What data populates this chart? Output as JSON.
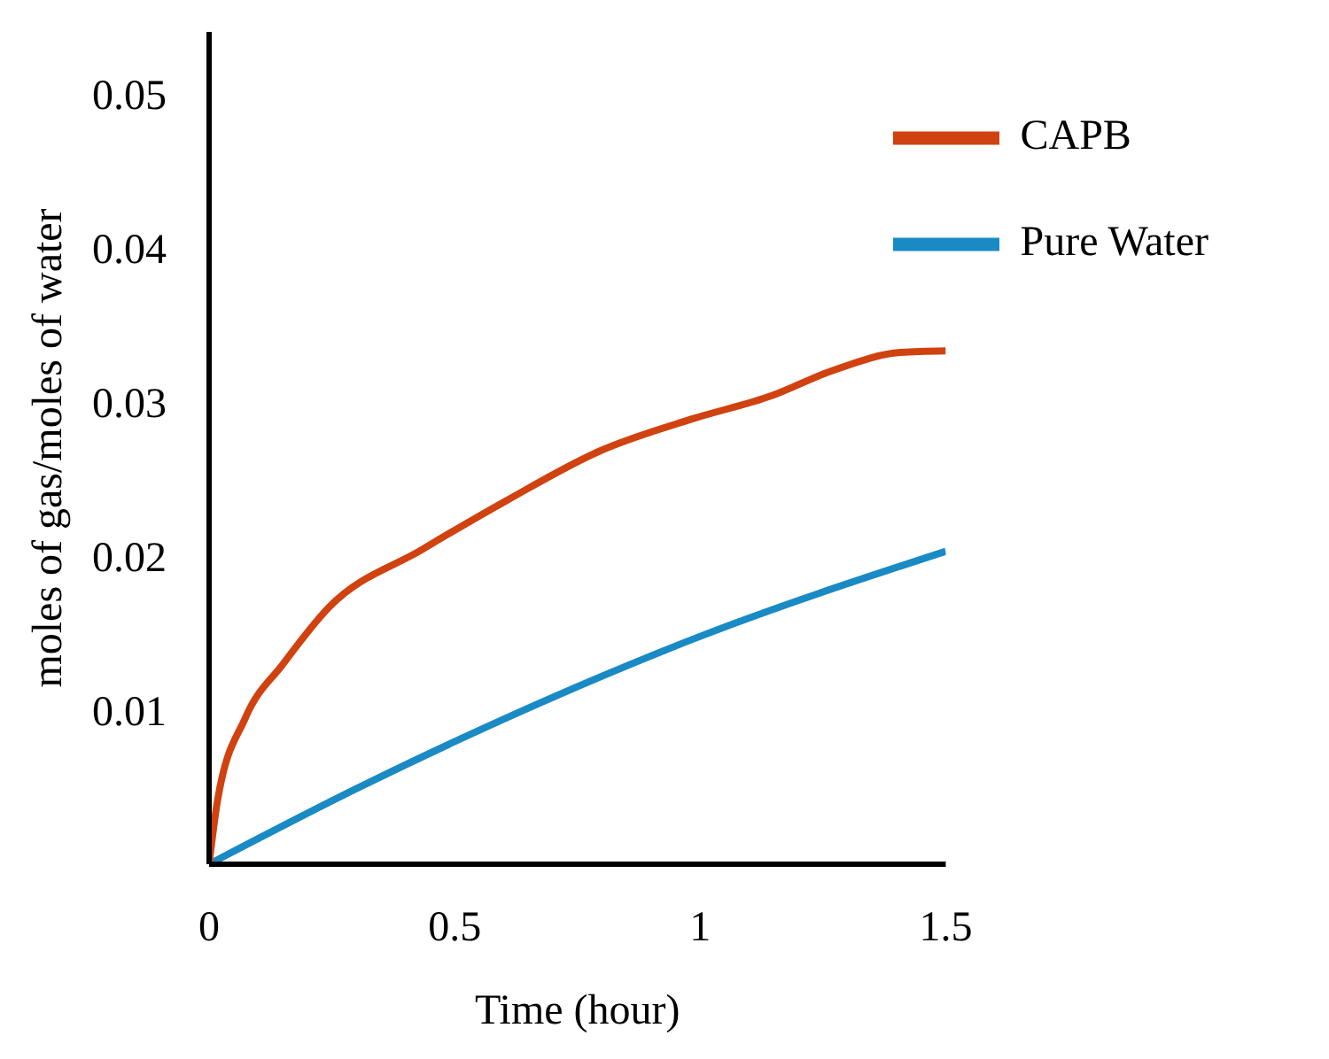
{
  "chart_data": {
    "type": "line",
    "xlabel": "Time (hour)",
    "ylabel": "moles of gas/moles of water",
    "xlim": [
      0,
      1.5
    ],
    "xticks": [
      0,
      0.5,
      1,
      1.5
    ],
    "ylim": [
      0,
      0.054
    ],
    "yticks": [
      0.01,
      0.02,
      0.03,
      0.04,
      0.05
    ],
    "grid": false,
    "legend": "top right",
    "marker": "none",
    "line_style": "solid",
    "series": [
      {
        "name": "Pure Water",
        "color": "#1a8ac4",
        "x": [
          0,
          0.3,
          0.606,
          0.985,
          1.5
        ],
        "values": [
          0,
          0.0049,
          0.0095,
          0.0146,
          0.0203
        ]
      },
      {
        "name": "CAPB",
        "color": "#d0420f",
        "x": [
          0,
          0.017,
          0.074,
          0.151,
          0.245,
          0.433,
          0.606,
          0.795,
          0.985,
          1.146,
          1.267,
          1.408,
          1.5
        ],
        "values": [
          0,
          0.0041,
          0.0095,
          0.013,
          0.0167,
          0.0204,
          0.0236,
          0.0268,
          0.0289,
          0.0304,
          0.032,
          0.0332,
          0.0333
        ]
      }
    ]
  }
}
